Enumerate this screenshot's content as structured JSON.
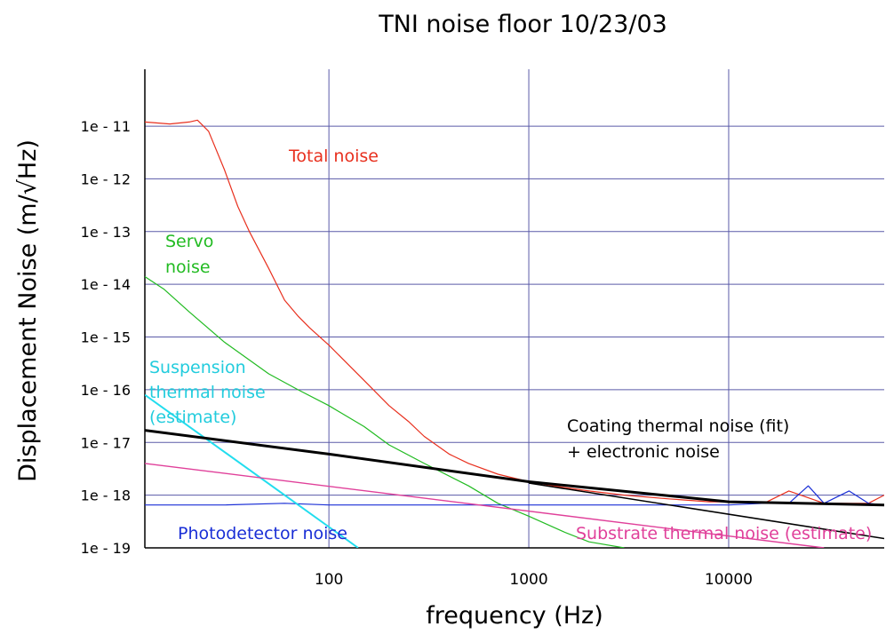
{
  "chart_data": {
    "type": "line",
    "title": "TNI noise floor 10/23/03",
    "xlabel": "frequency (Hz)",
    "ylabel": "Displacement Noise (m/√Hz)",
    "x_scale": "log",
    "y_scale": "log",
    "xlim": [
      12,
      60000
    ],
    "ylim": [
      1e-19,
      1.2e-10
    ],
    "grid": true,
    "x_ticks": [
      {
        "value": 100,
        "label": "100"
      },
      {
        "value": 1000,
        "label": "1000"
      },
      {
        "value": 10000,
        "label": "10000"
      }
    ],
    "y_ticks": [
      {
        "value": 1e-11,
        "label": "1e - 11"
      },
      {
        "value": 1e-12,
        "label": "1e - 12"
      },
      {
        "value": 1e-13,
        "label": "1e - 13"
      },
      {
        "value": 1e-14,
        "label": "1e - 14"
      },
      {
        "value": 1e-15,
        "label": "1e - 15"
      },
      {
        "value": 1e-16,
        "label": "1e - 16"
      },
      {
        "value": 1e-17,
        "label": "1e - 17"
      },
      {
        "value": 1e-18,
        "label": "1e - 18"
      },
      {
        "value": 1e-19,
        "label": "1e - 19"
      }
    ],
    "series": [
      {
        "name": "Total noise",
        "color": "#e8301e",
        "x": [
          12,
          16,
          20,
          22,
          25,
          30,
          35,
          40,
          50,
          60,
          70,
          80,
          100,
          120,
          150,
          200,
          250,
          300,
          400,
          500,
          700,
          1000,
          1500,
          2000,
          3000,
          5000,
          8000,
          10000,
          15000,
          20000,
          30000,
          50000,
          60000
        ],
        "y": [
          1.2e-11,
          1.1e-11,
          1.2e-11,
          1.3e-11,
          8e-12,
          1.5e-12,
          3e-13,
          1e-13,
          2e-14,
          5e-15,
          2.5e-15,
          1.5e-15,
          7e-16,
          3.5e-16,
          1.5e-16,
          5e-17,
          2.5e-17,
          1.3e-17,
          6e-18,
          4e-18,
          2.5e-18,
          1.8e-18,
          1.4e-18,
          1.2e-18,
          1e-18,
          8.5e-19,
          7.5e-19,
          7.5e-19,
          7e-19,
          1.2e-18,
          7e-19,
          7e-19,
          1e-18
        ]
      },
      {
        "name": "Servo noise",
        "color": "#22bb22",
        "x": [
          12,
          15,
          20,
          30,
          50,
          70,
          100,
          150,
          200,
          300,
          500,
          700,
          1000,
          1500,
          2000,
          3000
        ],
        "y": [
          1.4e-14,
          8e-15,
          3e-15,
          8e-16,
          2e-16,
          1e-16,
          5e-17,
          2e-17,
          9e-18,
          4e-18,
          1.5e-18,
          7e-19,
          4e-19,
          2e-19,
          1.3e-19,
          1e-19
        ]
      },
      {
        "name": "Photodetector noise",
        "color": "#1a2fd6",
        "x": [
          12,
          30,
          60,
          100,
          200,
          500,
          1000,
          2000,
          5000,
          10000,
          15000,
          20000,
          25000,
          30000,
          40000,
          50000,
          60000
        ],
        "y": [
          6.5e-19,
          6.5e-19,
          7e-19,
          6.5e-19,
          6.5e-19,
          6.5e-19,
          6.5e-19,
          6.5e-19,
          6.5e-19,
          6.5e-19,
          7e-19,
          7e-19,
          1.5e-18,
          7e-19,
          1.2e-18,
          7e-19,
          6.5e-19
        ]
      },
      {
        "name": "Suspension thermal noise (estimate)",
        "color": "#22ddee",
        "x": [
          12,
          140
        ],
        "y": [
          8e-17,
          1e-19
        ]
      },
      {
        "name": "Coating thermal noise (fit) + electronic noise",
        "color": "#000000",
        "x": [
          12,
          100,
          1000,
          10000,
          60000
        ],
        "y": [
          1.7e-17,
          6e-18,
          1.8e-18,
          7.5e-19,
          6.5e-19
        ]
      },
      {
        "name": "Substrate thermal noise (estimate)",
        "color": "#e0409a",
        "x": [
          12,
          30000
        ],
        "y": [
          4e-18,
          1e-19
        ]
      },
      {
        "name": "",
        "color": "#000000",
        "x": [
          1000,
          60000
        ],
        "y": [
          1.7e-18,
          1.5e-19
        ]
      }
    ],
    "annotations": [
      {
        "text": "Total noise",
        "color": "#e8301e"
      },
      {
        "text": "Servo",
        "color": "#22bb22"
      },
      {
        "text": "noise",
        "color": "#22bb22"
      },
      {
        "text": "Suspension",
        "color": "#22ccdd"
      },
      {
        "text": "thermal noise",
        "color": "#22ccdd"
      },
      {
        "text": "(estimate)",
        "color": "#22ccdd"
      },
      {
        "text": "Coating thermal noise (fit)",
        "color": "#000000"
      },
      {
        "text": "+ electronic noise",
        "color": "#000000"
      },
      {
        "text": "Photodetector noise",
        "color": "#1a2fd6"
      },
      {
        "text": "Substrate thermal noise (estimate)",
        "color": "#e0409a"
      }
    ]
  },
  "colors": {
    "grid": "#5a5aa8",
    "frame": "#000000"
  }
}
